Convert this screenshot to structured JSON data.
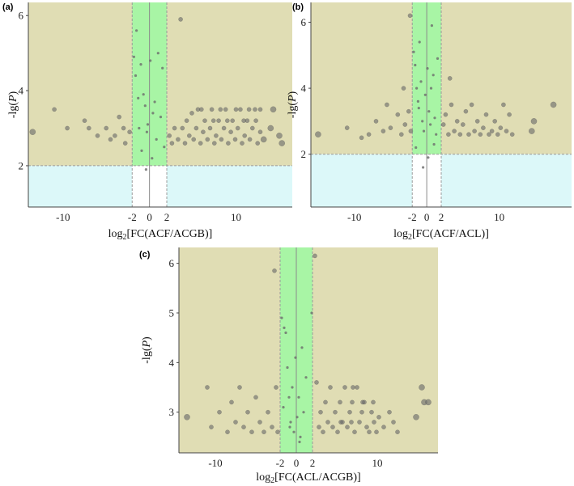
{
  "figure": {
    "background": "#ffffff",
    "colors": {
      "significant_region": "#e0ddb4",
      "nonsignificant_region": "#dcf8f9",
      "fold_change_band": "#a8f5a5",
      "point": "#6b6b6b",
      "dashed_line": "#9a9a9a"
    }
  },
  "chart_data": [
    {
      "panel": "(a)",
      "type": "scatter",
      "xlabel_main": "log",
      "xlabel_sub": "2",
      "xlabel_tail": "[FC(ACF/ACGB)]",
      "ylabel_prefix": "-lg(",
      "ylabel_var": "P",
      "ylabel_suffix": ")",
      "xlim": [
        -14,
        16.5
      ],
      "ylim": [
        0.9,
        6.35
      ],
      "x_ticks": [
        -10,
        -2,
        0,
        2,
        10
      ],
      "x_tick_labels": [
        "-10",
        "-2",
        "0",
        "2",
        "10"
      ],
      "y_ticks": [
        2,
        4,
        6
      ],
      "y_tick_labels": [
        "2",
        "4",
        "6"
      ],
      "p_threshold": 2,
      "fc_threshold": [
        -2,
        2
      ],
      "grid": false,
      "points": [
        [
          -13.5,
          2.9
        ],
        [
          -11,
          3.5
        ],
        [
          -9.5,
          3.0
        ],
        [
          -7.5,
          3.2
        ],
        [
          -7,
          3.0
        ],
        [
          -6,
          2.8
        ],
        [
          -5,
          3.0
        ],
        [
          -4.5,
          2.7
        ],
        [
          -4,
          2.8
        ],
        [
          -3.5,
          3.3
        ],
        [
          -3,
          3.0
        ],
        [
          -2.8,
          2.6
        ],
        [
          -2.3,
          2.9
        ],
        [
          -1.8,
          4.9
        ],
        [
          -1.6,
          4.4
        ],
        [
          -1.5,
          5.6
        ],
        [
          -1.3,
          3.8
        ],
        [
          -1.0,
          4.7
        ],
        [
          -0.7,
          3.9
        ],
        [
          -0.5,
          3.6
        ],
        [
          -0.3,
          2.9
        ],
        [
          -0.2,
          3.1
        ],
        [
          0.1,
          4.8
        ],
        [
          0.4,
          3.4
        ],
        [
          0.6,
          3.7
        ],
        [
          0.8,
          2.7
        ],
        [
          1.0,
          5.0
        ],
        [
          1.3,
          3.3
        ],
        [
          1.5,
          4.6
        ],
        [
          -0.9,
          2.4
        ],
        [
          0.3,
          2.2
        ],
        [
          1.7,
          2.5
        ],
        [
          -0.4,
          1.9
        ],
        [
          -1.2,
          3.0
        ],
        [
          2.3,
          2.8
        ],
        [
          2.6,
          2.6
        ],
        [
          2.9,
          3.0
        ],
        [
          3.3,
          2.7
        ],
        [
          3.6,
          5.9
        ],
        [
          3.8,
          3.0
        ],
        [
          4.1,
          2.6
        ],
        [
          4.3,
          3.2
        ],
        [
          4.6,
          2.8
        ],
        [
          4.9,
          3.4
        ],
        [
          5.1,
          2.7
        ],
        [
          5.4,
          3.0
        ],
        [
          5.6,
          3.5
        ],
        [
          5.9,
          2.6
        ],
        [
          6.2,
          2.9
        ],
        [
          6.4,
          3.2
        ],
        [
          6.7,
          2.7
        ],
        [
          7.0,
          3.0
        ],
        [
          7.2,
          3.5
        ],
        [
          7.5,
          2.6
        ],
        [
          7.7,
          2.8
        ],
        [
          8.0,
          3.2
        ],
        [
          8.3,
          2.7
        ],
        [
          8.6,
          3.0
        ],
        [
          8.8,
          3.5
        ],
        [
          9.1,
          2.6
        ],
        [
          9.4,
          2.9
        ],
        [
          9.6,
          3.2
        ],
        [
          9.9,
          2.7
        ],
        [
          10.2,
          3.0
        ],
        [
          10.5,
          3.5
        ],
        [
          10.7,
          2.6
        ],
        [
          11.0,
          2.8
        ],
        [
          11.3,
          3.2
        ],
        [
          11.6,
          2.7
        ],
        [
          11.9,
          3.0
        ],
        [
          12.2,
          3.5
        ],
        [
          12.5,
          2.6
        ],
        [
          12.8,
          2.9
        ],
        [
          13.2,
          2.7
        ],
        [
          14.0,
          3.0
        ],
        [
          15.0,
          2.8
        ],
        [
          15.3,
          2.6
        ],
        [
          6.0,
          3.5
        ],
        [
          8.2,
          3.5
        ],
        [
          10.0,
          3.5
        ],
        [
          11.5,
          3.5
        ],
        [
          12.8,
          3.5
        ],
        [
          14.3,
          3.5
        ],
        [
          7.4,
          3.2
        ],
        [
          9.0,
          3.2
        ],
        [
          10.9,
          3.2
        ],
        [
          12.3,
          3.2
        ]
      ]
    },
    {
      "panel": "(b)",
      "type": "scatter",
      "xlabel_main": "log",
      "xlabel_sub": "2",
      "xlabel_tail": "[FC(ACF/ACL)]",
      "ylabel_prefix": "-lg(",
      "ylabel_var": "P",
      "ylabel_suffix": ")",
      "xlim": [
        -16,
        20
      ],
      "ylim": [
        0.4,
        6.6
      ],
      "x_ticks": [
        -10,
        -2,
        0,
        2,
        10
      ],
      "x_tick_labels": [
        "-10",
        "-2",
        "0",
        "2",
        "10"
      ],
      "y_ticks": [
        2,
        4,
        6
      ],
      "y_tick_labels": [
        "2",
        "4",
        "6"
      ],
      "p_threshold": 2,
      "fc_threshold": [
        -2,
        2
      ],
      "grid": false,
      "points": [
        [
          -15,
          2.6
        ],
        [
          -11,
          2.8
        ],
        [
          -9,
          2.5
        ],
        [
          -8,
          2.6
        ],
        [
          -7,
          3.0
        ],
        [
          -6,
          2.7
        ],
        [
          -5.5,
          3.5
        ],
        [
          -5,
          2.8
        ],
        [
          -4,
          3.2
        ],
        [
          -3.5,
          2.6
        ],
        [
          -3.2,
          4.0
        ],
        [
          -3,
          2.9
        ],
        [
          -2.5,
          3.3
        ],
        [
          -2.3,
          6.2
        ],
        [
          -2.2,
          2.7
        ],
        [
          -1.8,
          5.1
        ],
        [
          -1.6,
          4.7
        ],
        [
          -1.4,
          4.0
        ],
        [
          -1.2,
          3.6
        ],
        [
          -1.0,
          5.4
        ],
        [
          -0.8,
          4.2
        ],
        [
          -0.6,
          3.0
        ],
        [
          -0.4,
          2.7
        ],
        [
          -0.2,
          3.8
        ],
        [
          0.1,
          4.6
        ],
        [
          0.3,
          3.3
        ],
        [
          0.5,
          2.9
        ],
        [
          0.7,
          5.9
        ],
        [
          0.9,
          4.4
        ],
        [
          1.1,
          3.1
        ],
        [
          1.3,
          2.6
        ],
        [
          1.5,
          4.9
        ],
        [
          -1.5,
          2.2
        ],
        [
          0.2,
          1.9
        ],
        [
          1.0,
          2.3
        ],
        [
          -0.5,
          1.6
        ],
        [
          0.6,
          4.0
        ],
        [
          -1.1,
          3.4
        ],
        [
          2.3,
          2.9
        ],
        [
          2.6,
          3.2
        ],
        [
          3.0,
          2.6
        ],
        [
          3.4,
          3.5
        ],
        [
          3.8,
          2.7
        ],
        [
          4.2,
          3.0
        ],
        [
          4.6,
          2.6
        ],
        [
          5.0,
          2.9
        ],
        [
          5.4,
          3.3
        ],
        [
          5.8,
          2.6
        ],
        [
          6.2,
          3.5
        ],
        [
          6.6,
          2.7
        ],
        [
          7.0,
          3.0
        ],
        [
          7.4,
          2.6
        ],
        [
          7.8,
          2.8
        ],
        [
          8.2,
          3.2
        ],
        [
          8.6,
          2.6
        ],
        [
          9.0,
          2.7
        ],
        [
          9.4,
          3.0
        ],
        [
          9.8,
          2.6
        ],
        [
          10.2,
          2.8
        ],
        [
          10.6,
          3.5
        ],
        [
          11.0,
          2.7
        ],
        [
          11.4,
          3.2
        ],
        [
          11.8,
          2.6
        ],
        [
          14.5,
          2.7
        ],
        [
          14.8,
          3.0
        ],
        [
          17.5,
          3.5
        ],
        [
          3.2,
          4.3
        ]
      ]
    },
    {
      "panel": "(c)",
      "type": "scatter",
      "xlabel_main": "log",
      "xlabel_sub": "2",
      "xlabel_tail": "[FC(ACL/ACGB)]",
      "ylabel_prefix": "-lg(",
      "ylabel_var": "P",
      "ylabel_suffix": ")",
      "xlim": [
        -14.5,
        17.5
      ],
      "ylim": [
        2.18,
        6.32
      ],
      "x_ticks": [
        -10,
        -2,
        0,
        2,
        10
      ],
      "x_tick_labels": [
        "-10",
        "-2",
        "0",
        "2",
        "10"
      ],
      "y_ticks": [
        3,
        4,
        5,
        6
      ],
      "y_tick_labels": [
        "3",
        "4",
        "5",
        "6"
      ],
      "p_threshold": 2,
      "fc_threshold": [
        -2,
        2
      ],
      "grid": false,
      "points": [
        [
          -13.5,
          2.9
        ],
        [
          -11,
          3.5
        ],
        [
          -10.5,
          2.7
        ],
        [
          -9.5,
          3.0
        ],
        [
          -8.5,
          2.6
        ],
        [
          -8,
          3.2
        ],
        [
          -7.5,
          2.8
        ],
        [
          -7,
          3.5
        ],
        [
          -6.5,
          2.7
        ],
        [
          -6,
          3.0
        ],
        [
          -5.5,
          2.6
        ],
        [
          -5,
          3.3
        ],
        [
          -4.5,
          2.8
        ],
        [
          -4,
          2.6
        ],
        [
          -3.5,
          3.0
        ],
        [
          -3,
          2.7
        ],
        [
          -2.7,
          5.85
        ],
        [
          -2.5,
          3.5
        ],
        [
          -2.3,
          2.6
        ],
        [
          -1.8,
          4.9
        ],
        [
          -1.5,
          4.7
        ],
        [
          -1.3,
          4.6
        ],
        [
          -1.1,
          3.9
        ],
        [
          -0.9,
          3.3
        ],
        [
          -0.7,
          2.8
        ],
        [
          -0.5,
          3.5
        ],
        [
          -0.3,
          2.6
        ],
        [
          -0.1,
          4.1
        ],
        [
          0.1,
          2.9
        ],
        [
          0.3,
          3.3
        ],
        [
          0.5,
          2.5
        ],
        [
          0.7,
          4.3
        ],
        [
          0.9,
          3.0
        ],
        [
          1.2,
          3.7
        ],
        [
          -1.6,
          3.1
        ],
        [
          0.4,
          2.4
        ],
        [
          -0.8,
          2.7
        ],
        [
          2.3,
          6.15
        ],
        [
          1.9,
          5.0
        ],
        [
          2.5,
          3.6
        ],
        [
          2.8,
          2.7
        ],
        [
          3.0,
          3.0
        ],
        [
          3.3,
          2.6
        ],
        [
          3.6,
          3.2
        ],
        [
          3.9,
          2.8
        ],
        [
          4.2,
          3.5
        ],
        [
          4.5,
          2.7
        ],
        [
          4.8,
          3.0
        ],
        [
          5.1,
          2.6
        ],
        [
          5.4,
          3.2
        ],
        [
          5.7,
          2.8
        ],
        [
          6.0,
          3.5
        ],
        [
          6.3,
          2.7
        ],
        [
          6.6,
          3.0
        ],
        [
          6.9,
          3.2
        ],
        [
          7.2,
          2.6
        ],
        [
          7.5,
          3.5
        ],
        [
          7.8,
          2.8
        ],
        [
          8.1,
          3.0
        ],
        [
          8.4,
          3.2
        ],
        [
          8.7,
          2.7
        ],
        [
          9.0,
          2.6
        ],
        [
          9.3,
          3.0
        ],
        [
          9.6,
          2.8
        ],
        [
          9.9,
          2.6
        ],
        [
          10.2,
          2.9
        ],
        [
          10.8,
          2.7
        ],
        [
          11.5,
          3.0
        ],
        [
          12.0,
          2.8
        ],
        [
          12.5,
          2.6
        ],
        [
          14.8,
          2.9
        ],
        [
          15.5,
          3.5
        ],
        [
          15.8,
          3.2
        ],
        [
          16.3,
          3.2
        ],
        [
          7.0,
          3.5
        ],
        [
          8.2,
          3.2
        ],
        [
          5.5,
          2.8
        ],
        [
          6.8,
          2.8
        ],
        [
          9.5,
          3.2
        ]
      ]
    }
  ]
}
